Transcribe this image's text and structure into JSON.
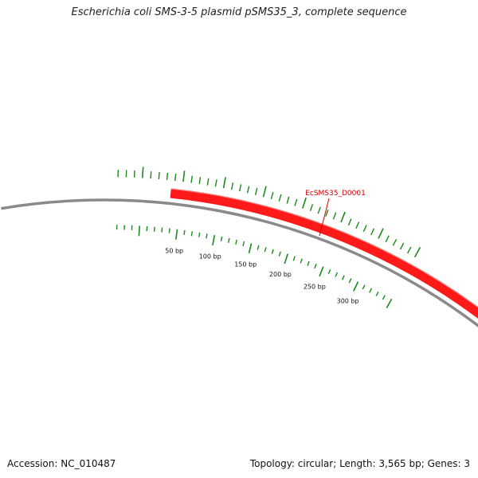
{
  "title": "Escherichia coli SMS-3-5 plasmid pSMS35_3, complete sequence",
  "accession_text": "Accession: NC_010487",
  "summary_text": "Topology: circular; Length: 3,565 bp; Genes: 3",
  "plasmid": {
    "topology": "circular",
    "length_bp": 3565,
    "gene_count": 3
  },
  "scale": {
    "minor_step_bp": 10,
    "major_step_bp": 50,
    "labels": [
      "50 bp",
      "100 bp",
      "150 bp",
      "200 bp",
      "250 bp",
      "300 bp"
    ],
    "tick_color": "#1a8a1a"
  },
  "genes": [
    {
      "name": "EcSMS35_D0001",
      "color": "#ff1a1a",
      "label_color": "#cc0000"
    }
  ],
  "colors": {
    "backbone": "#8a8a8a",
    "gene_fill": "#ff1a1a",
    "gene_edge": "#cc0000",
    "tick": "#1a8a1a",
    "label": "#cc0000"
  }
}
